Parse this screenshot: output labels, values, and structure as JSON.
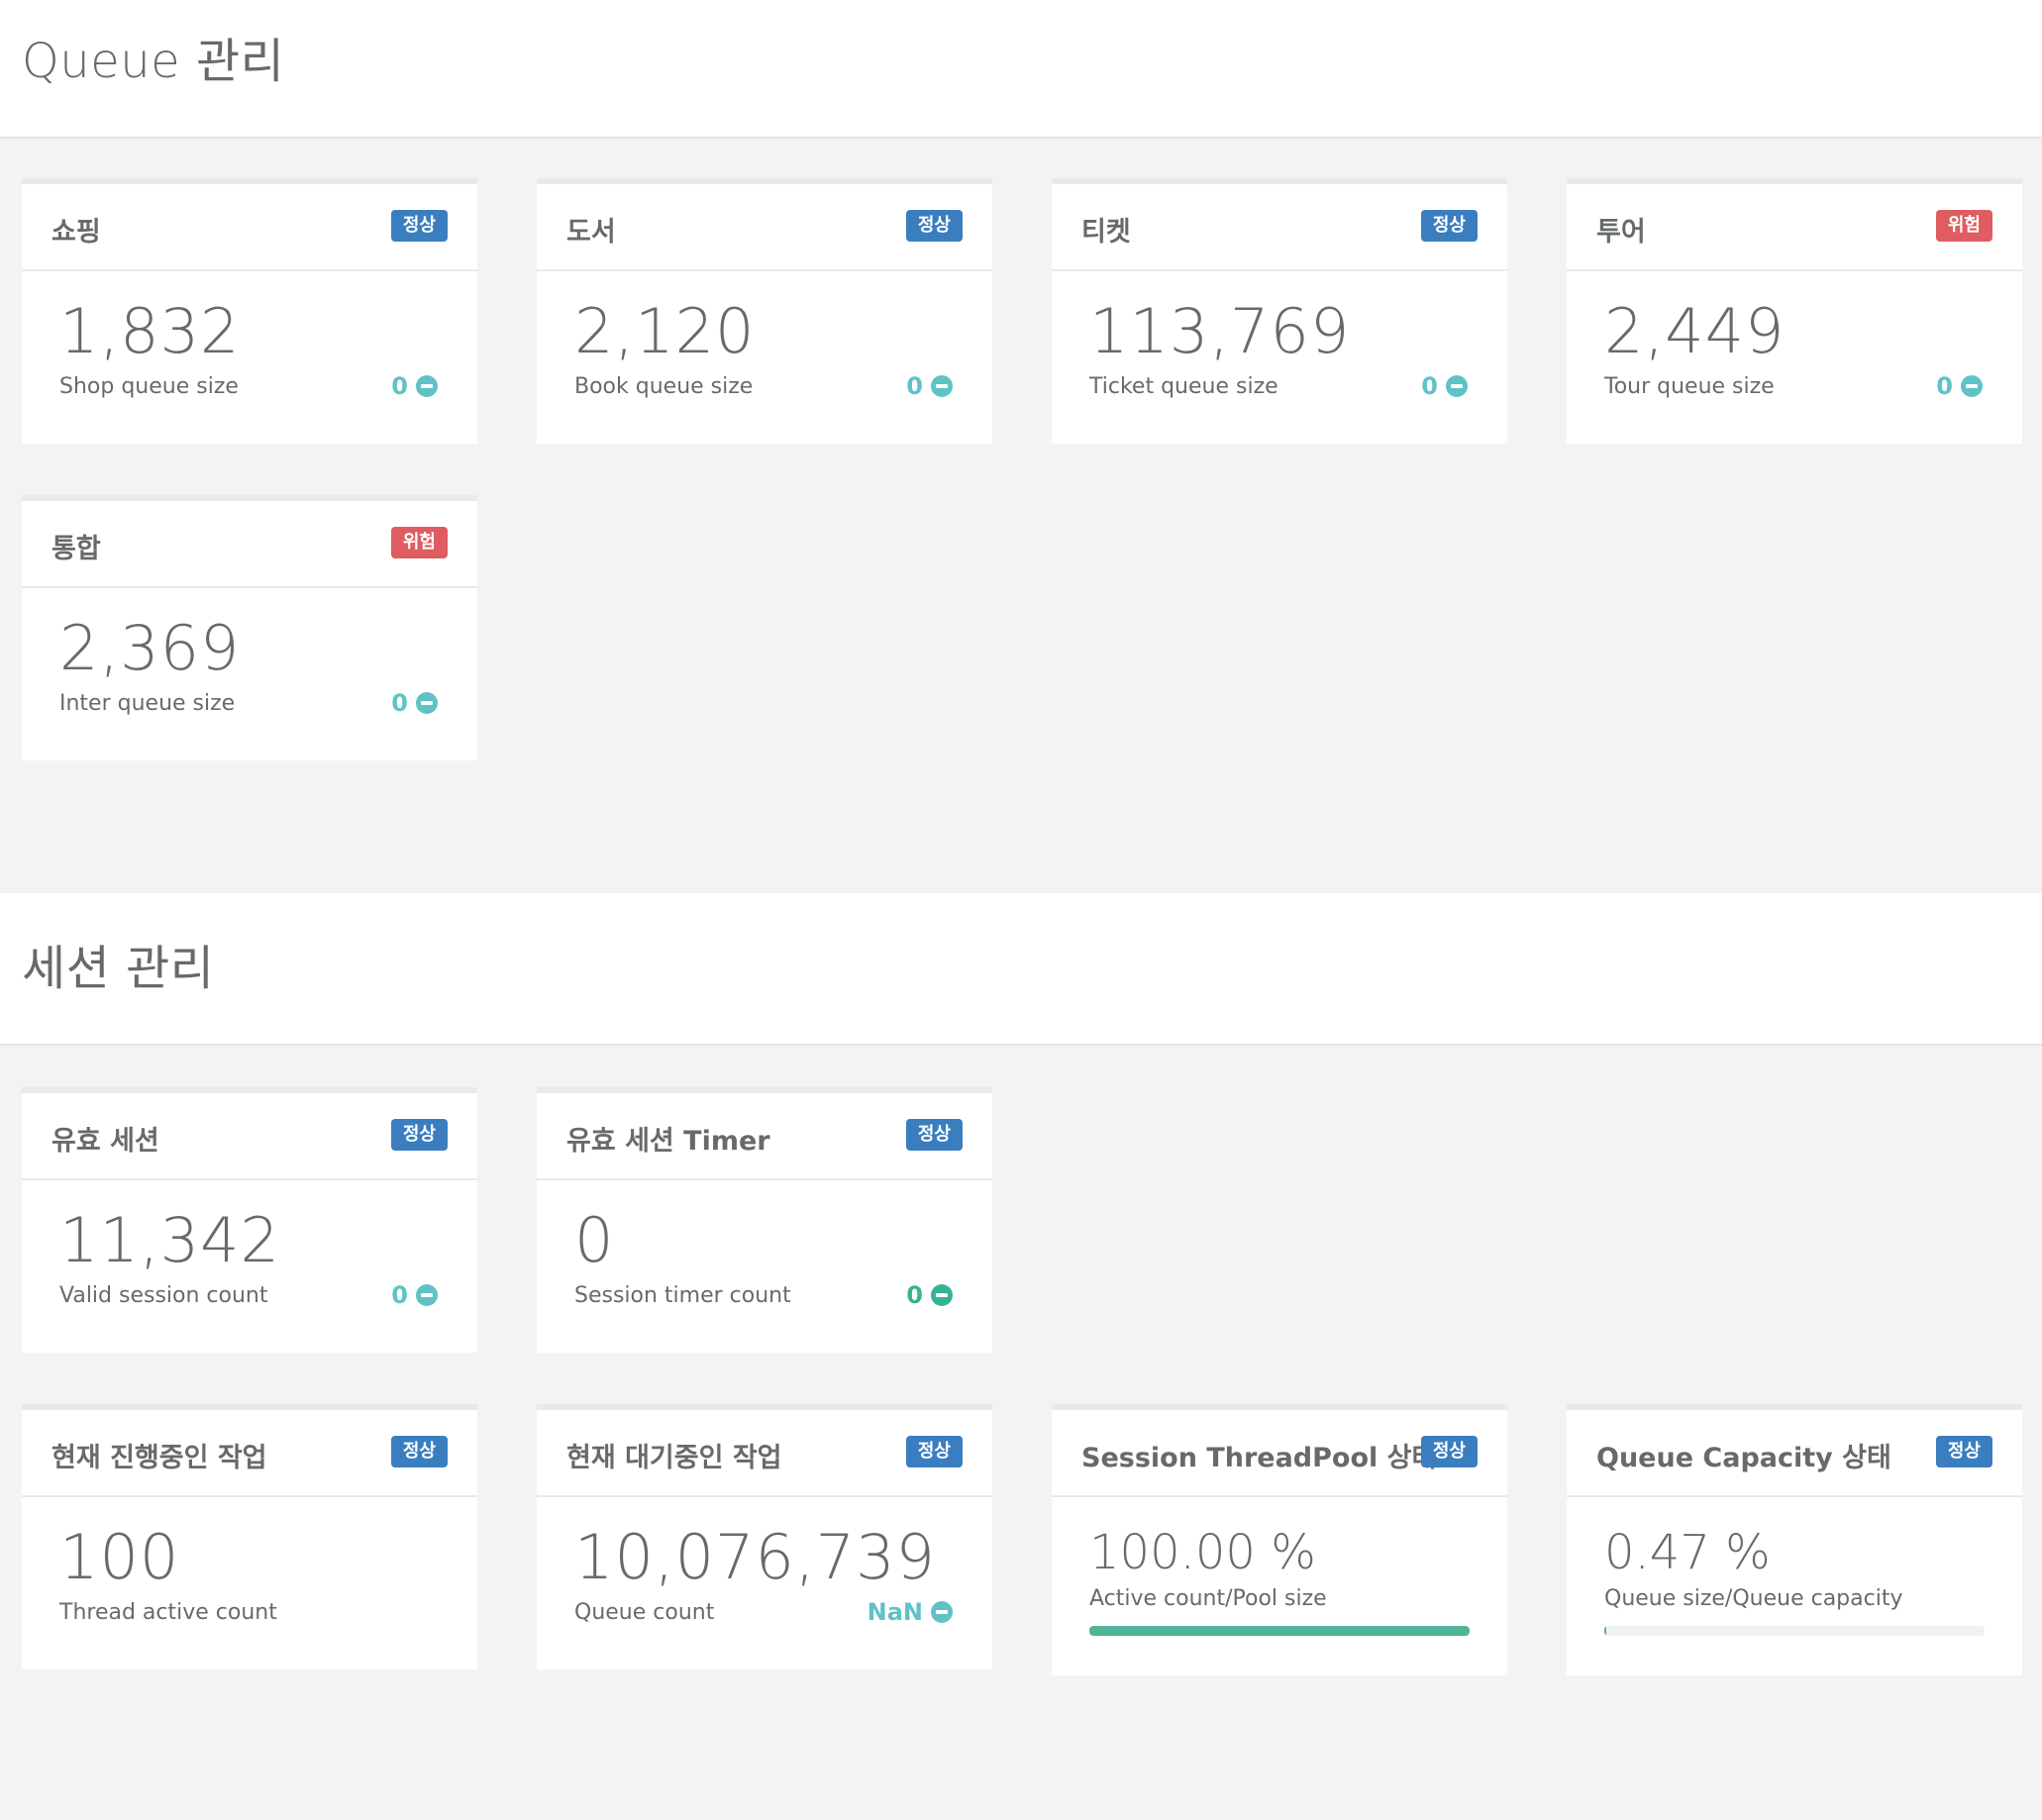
{
  "queue_section": {
    "title": "Queue 관리",
    "cards": [
      {
        "title": "쇼핑",
        "status": "정상",
        "status_type": "ok",
        "value": "1,832",
        "label": "Shop queue size",
        "delta": "0"
      },
      {
        "title": "도서",
        "status": "정상",
        "status_type": "ok",
        "value": "2,120",
        "label": "Book queue size",
        "delta": "0"
      },
      {
        "title": "티켓",
        "status": "정상",
        "status_type": "ok",
        "value": "113,769",
        "label": "Ticket queue size",
        "delta": "0"
      },
      {
        "title": "투어",
        "status": "위험",
        "status_type": "danger",
        "value": "2,449",
        "label": "Tour queue size",
        "delta": "0"
      },
      {
        "title": "통합",
        "status": "위험",
        "status_type": "danger",
        "value": "2,369",
        "label": "Inter queue size",
        "delta": "0"
      }
    ]
  },
  "session_section": {
    "title": "세션 관리",
    "cards": [
      {
        "title": "유효 세션",
        "status": "정상",
        "status_type": "ok",
        "value": "11,342",
        "label": "Valid session count",
        "delta": "0"
      },
      {
        "title": "유효 세션 Timer",
        "status": "정상",
        "status_type": "ok",
        "value": "0",
        "label": "Session timer count",
        "delta": "0"
      },
      {
        "title": "현재 진행중인 작업",
        "status": "정상",
        "status_type": "ok",
        "value": "100",
        "label": "Thread active count"
      },
      {
        "title": "현재 대기중인 작업",
        "status": "정상",
        "status_type": "ok",
        "value": "10,076,739",
        "label": "Queue count",
        "delta": "NaN"
      },
      {
        "title": "Session ThreadPool 상태",
        "status": "정상",
        "status_type": "ok",
        "value": "100.00 %",
        "label": "Active count/Pool size",
        "progress": 1.0
      },
      {
        "title": "Queue Capacity 상태",
        "status": "정상",
        "status_type": "ok",
        "value": "0.47 %",
        "label": "Queue size/Queue capacity",
        "progress": 0.0047
      }
    ]
  },
  "colors": {
    "badge_ok": "#3a7ec0",
    "badge_danger": "#df5c60",
    "delta_teal": "#5fc2c7",
    "delta_green": "#36b394",
    "progress_fill": "#4fb398"
  },
  "icons": {
    "delta_indicator": "minus-circle-icon"
  }
}
